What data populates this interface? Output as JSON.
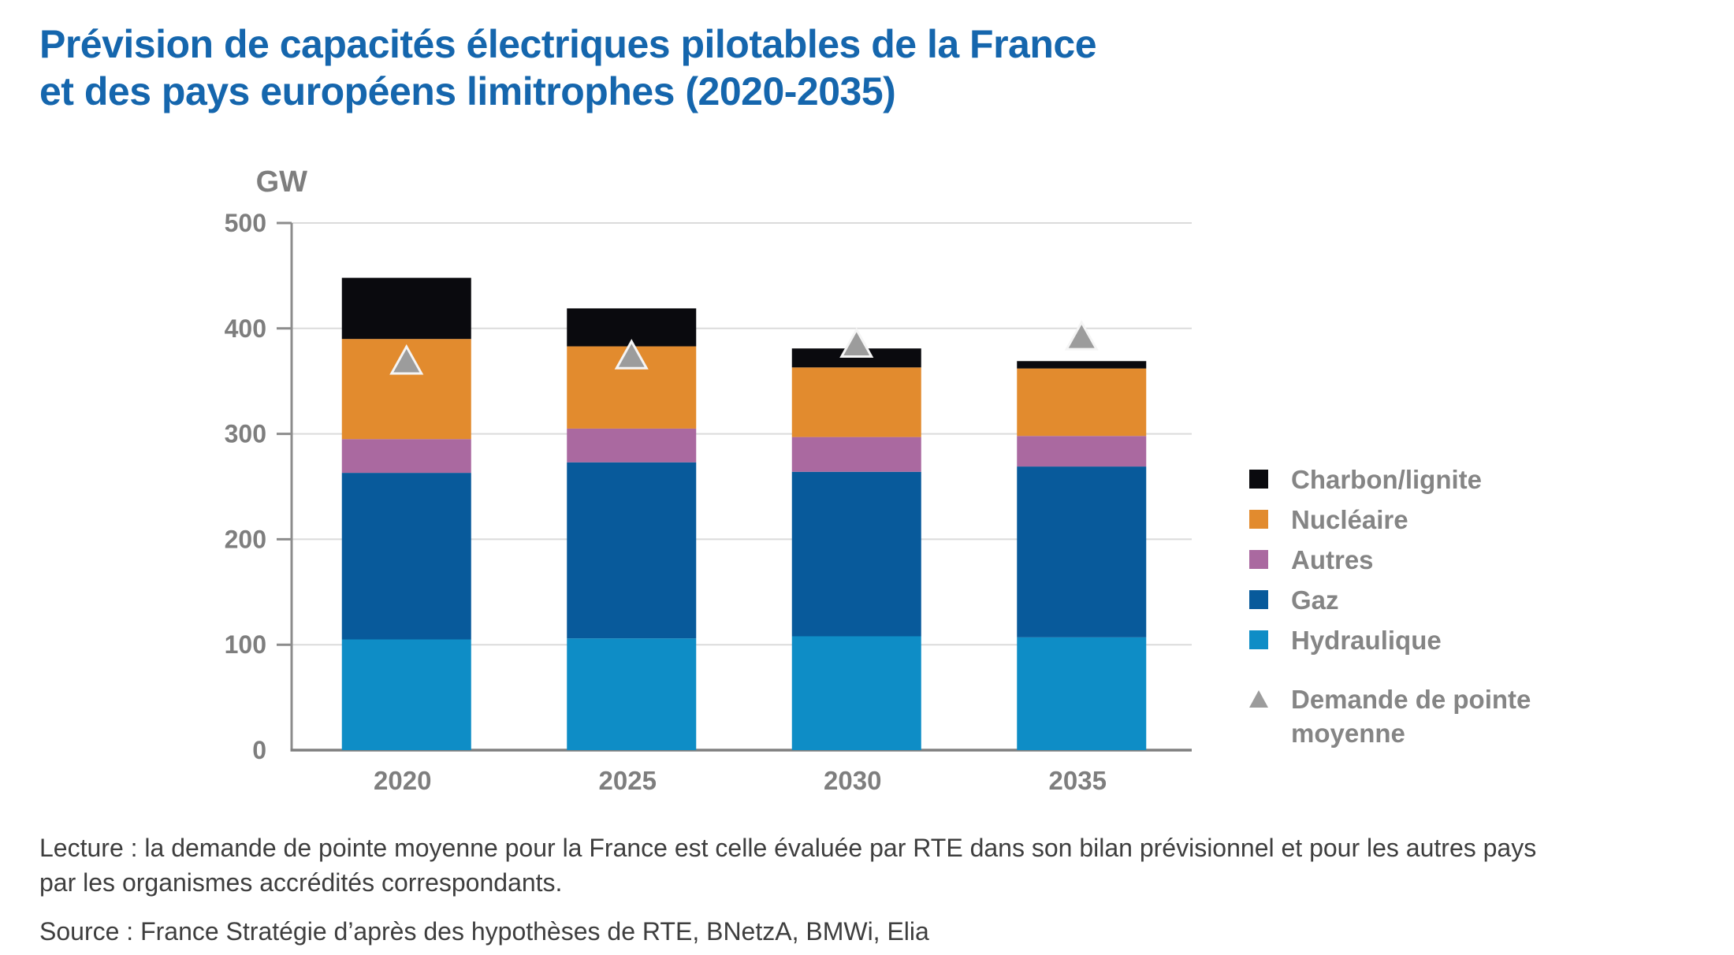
{
  "title": {
    "line1": "Prévision de capacités électriques pilotables de la France",
    "line2": "et des pays européens limitrophes (2020-2035)"
  },
  "chart_data": {
    "type": "bar",
    "stacked": true,
    "title": "Prévision de capacités électriques pilotables de la France et des pays européens limitrophes (2020-2035)",
    "unit_label": "GW",
    "categories": [
      "2020",
      "2025",
      "2030",
      "2035"
    ],
    "series": [
      {
        "name": "Hydraulique",
        "color": "#0E8DC6",
        "values": [
          105,
          106,
          108,
          107
        ]
      },
      {
        "name": "Gaz",
        "color": "#085A9B",
        "values": [
          158,
          167,
          156,
          162
        ]
      },
      {
        "name": "Autres",
        "color": "#AA69A0",
        "values": [
          32,
          32,
          33,
          29
        ]
      },
      {
        "name": "Nucléaire",
        "color": "#E28B2E",
        "values": [
          95,
          78,
          66,
          64
        ]
      },
      {
        "name": "Charbon/lignite",
        "color": "#0A0A0E",
        "values": [
          58,
          36,
          18,
          7
        ]
      }
    ],
    "markers": {
      "name": "Demande de pointe moyenne",
      "color": "#9C9C9C",
      "values": [
        370,
        375,
        386,
        393
      ]
    },
    "totals": [
      448,
      419,
      381,
      369
    ],
    "ylim": [
      0,
      500
    ],
    "yticks": [
      0,
      100,
      200,
      300,
      400,
      500
    ],
    "grid": true,
    "legend_position": "right"
  },
  "legend": {
    "items": [
      {
        "label": "Charbon/lignite",
        "color": "#0A0A0E"
      },
      {
        "label": "Nucléaire",
        "color": "#E28B2E"
      },
      {
        "label": "Autres",
        "color": "#AA69A0"
      },
      {
        "label": "Gaz",
        "color": "#085A9B"
      },
      {
        "label": "Hydraulique",
        "color": "#0E8DC6"
      }
    ],
    "marker": {
      "label": "Demande de pointe moyenne",
      "color": "#9C9C9C"
    }
  },
  "notes": {
    "lecture_lines": [
      "Lecture : la demande de pointe moyenne pour la France est celle évaluée par RTE dans son bilan prévisionnel et pour les autres pays",
      "par les organismes accrédités correspondants."
    ],
    "source": "Source : France Stratégie d’après des hypothèses de RTE, BNetzA, BMWi, Elia"
  }
}
